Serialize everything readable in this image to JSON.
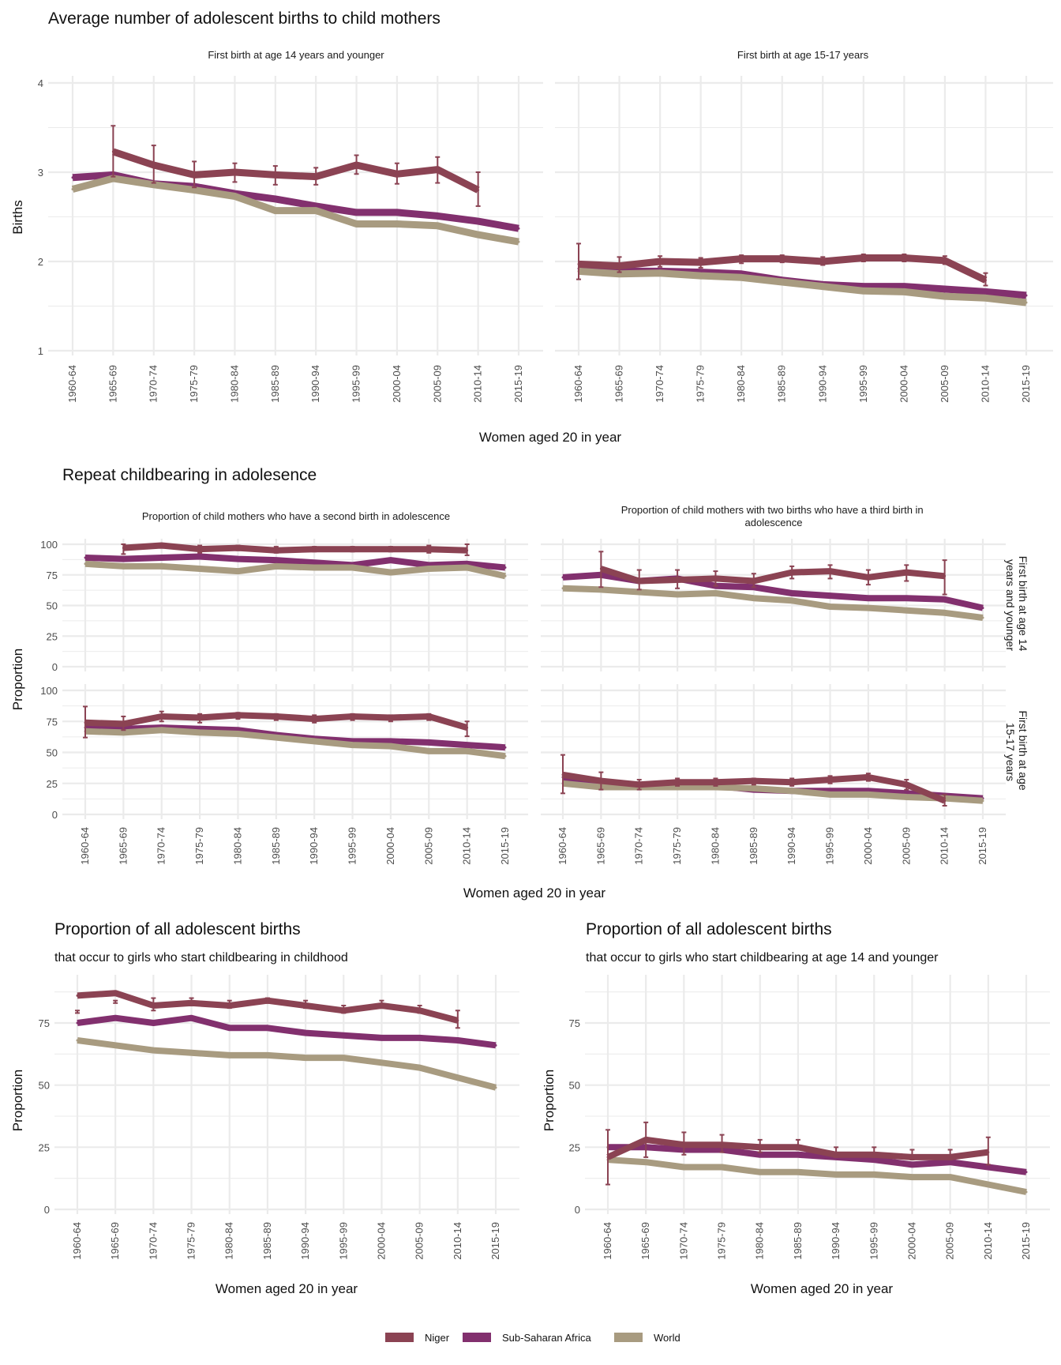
{
  "colors": {
    "Niger": "#8B4353",
    "Sub-Saharan Africa": "#82306E",
    "World": "#A89B80"
  },
  "legend": {
    "items": [
      "Niger",
      "Sub-Saharan Africa",
      "World"
    ]
  },
  "sections": {
    "top": {
      "title": "Average number of adolescent births to child mothers",
      "ylabel": "Births",
      "xlabel": "Women aged 20 in year"
    },
    "middle": {
      "title": "Repeat childbearing in adolesence",
      "ylabel": "Proportion",
      "xlabel": "Women aged 20 in year",
      "col_strips": [
        "Proportion of child mothers who have a second birth in adolescence",
        "Proportion of child mothers with two births who have a third birth in adolescence"
      ],
      "row_strips": [
        "First birth at age 14 years and younger",
        "First birth at age 15-17 years"
      ]
    },
    "bottom_left": {
      "title": "Proportion of all adolescent births",
      "subtitle": "that occur to girls who start childbearing in childhood",
      "ylabel": "Proportion",
      "xlabel": "Women aged 20 in year"
    },
    "bottom_right": {
      "title": "Proportion of all adolescent births",
      "subtitle": "that occur to girls who start childbearing at age 14 and younger",
      "ylabel": "Proportion",
      "xlabel": "Women aged 20 in year"
    }
  },
  "chart_data": [
    {
      "id": "births_14",
      "type": "line",
      "title": "First birth at age 14 years and younger",
      "xlabel": "Women aged 20 in year",
      "ylabel": "Births",
      "ylim": [
        1,
        4
      ],
      "yticks": [
        1,
        2,
        3,
        4
      ],
      "grid": true,
      "categories": [
        "1960-64",
        "1965-69",
        "1970-74",
        "1975-79",
        "1980-84",
        "1985-89",
        "1990-94",
        "1995-99",
        "2000-04",
        "2005-09",
        "2010-14",
        "2015-19"
      ],
      "series": [
        {
          "name": "Niger",
          "values": [
            null,
            3.23,
            3.08,
            2.97,
            3.0,
            2.97,
            2.95,
            3.08,
            2.98,
            3.03,
            2.8,
            null
          ],
          "error_low": [
            null,
            2.95,
            2.88,
            2.83,
            2.89,
            2.86,
            2.86,
            2.98,
            2.87,
            2.88,
            2.62,
            null
          ],
          "error_high": [
            null,
            3.52,
            3.3,
            3.12,
            3.1,
            3.07,
            3.05,
            3.19,
            3.1,
            3.17,
            3.0,
            null
          ]
        },
        {
          "name": "Sub-Saharan Africa",
          "values": [
            2.94,
            2.97,
            2.87,
            2.84,
            2.76,
            2.7,
            2.62,
            2.55,
            2.55,
            2.51,
            2.45,
            2.37
          ]
        },
        {
          "name": "World",
          "values": [
            2.81,
            2.93,
            2.86,
            2.8,
            2.73,
            2.57,
            2.57,
            2.42,
            2.42,
            2.4,
            2.3,
            2.22
          ]
        }
      ]
    },
    {
      "id": "births_15_17",
      "type": "line",
      "title": "First birth at age 15-17 years",
      "xlabel": "Women aged 20 in year",
      "ylabel": "Births",
      "ylim": [
        1,
        4
      ],
      "yticks": [
        1,
        2,
        3,
        4
      ],
      "grid": true,
      "categories": [
        "1960-64",
        "1965-69",
        "1970-74",
        "1975-79",
        "1980-84",
        "1985-89",
        "1990-94",
        "1995-99",
        "2000-04",
        "2005-09",
        "2010-14",
        "2015-19"
      ],
      "series": [
        {
          "name": "Niger",
          "values": [
            1.97,
            1.95,
            2.0,
            1.99,
            2.03,
            2.03,
            2.0,
            2.04,
            2.04,
            2.01,
            1.79,
            null
          ],
          "error_low": [
            1.8,
            1.88,
            1.94,
            1.93,
            1.98,
            1.99,
            1.96,
            2.0,
            2.0,
            1.97,
            1.73,
            null
          ],
          "error_high": [
            2.2,
            2.05,
            2.06,
            2.04,
            2.07,
            2.07,
            2.05,
            2.08,
            2.08,
            2.06,
            1.87,
            null
          ]
        },
        {
          "name": "Sub-Saharan Africa",
          "values": [
            1.92,
            1.89,
            1.89,
            1.88,
            1.86,
            1.79,
            1.74,
            1.72,
            1.72,
            1.69,
            1.66,
            1.62
          ]
        },
        {
          "name": "World",
          "values": [
            1.89,
            1.86,
            1.87,
            1.84,
            1.82,
            1.77,
            1.72,
            1.67,
            1.66,
            1.61,
            1.59,
            1.54
          ]
        }
      ]
    },
    {
      "id": "second_14",
      "type": "line",
      "title": "Proportion of child mothers who have a second birth in adolescence",
      "row": "First birth at age 14 years and younger",
      "ylabel": "Proportion",
      "ylim": [
        0,
        100
      ],
      "yticks": [
        0,
        25,
        50,
        75,
        100
      ],
      "grid": true,
      "categories": [
        "1960-64",
        "1965-69",
        "1970-74",
        "1975-79",
        "1980-84",
        "1985-89",
        "1990-94",
        "1995-99",
        "2000-04",
        "2005-09",
        "2010-14",
        "2015-19"
      ],
      "series": [
        {
          "name": "Niger",
          "values": [
            null,
            97,
            99,
            96,
            97,
            95,
            96,
            96,
            96,
            96,
            95,
            null
          ],
          "error_low": [
            null,
            92,
            97,
            93,
            95,
            93,
            94,
            94,
            94,
            93,
            91,
            null
          ],
          "error_high": [
            null,
            100,
            100,
            99,
            99,
            98,
            98,
            98,
            98,
            99,
            100,
            null
          ]
        },
        {
          "name": "Sub-Saharan Africa",
          "values": [
            89,
            88,
            89,
            90,
            88,
            87,
            85,
            83,
            87,
            83,
            84,
            81
          ]
        },
        {
          "name": "World",
          "values": [
            84,
            82,
            82,
            80,
            78,
            82,
            81,
            81,
            77,
            80,
            81,
            74
          ]
        }
      ]
    },
    {
      "id": "third_14",
      "type": "line",
      "title": "Proportion of child mothers with two births who have a third birth in adolescence",
      "row": "First birth at age 14 years and younger",
      "ylabel": "Proportion",
      "ylim": [
        0,
        100
      ],
      "yticks": [
        0,
        25,
        50,
        75,
        100
      ],
      "grid": true,
      "categories": [
        "1960-64",
        "1965-69",
        "1970-74",
        "1975-79",
        "1980-84",
        "1985-89",
        "1990-94",
        "1995-99",
        "2000-04",
        "2005-09",
        "2010-14",
        "2015-19"
      ],
      "series": [
        {
          "name": "Niger",
          "values": [
            null,
            80,
            70,
            71,
            72,
            70,
            77,
            78,
            73,
            77,
            74,
            null
          ],
          "error_low": [
            null,
            65,
            63,
            64,
            66,
            65,
            72,
            72,
            67,
            70,
            59,
            null
          ],
          "error_high": [
            null,
            94,
            79,
            79,
            78,
            76,
            82,
            83,
            79,
            83,
            87,
            null
          ]
        },
        {
          "name": "Sub-Saharan Africa",
          "values": [
            73,
            75,
            70,
            72,
            66,
            65,
            60,
            58,
            56,
            56,
            55,
            48
          ]
        },
        {
          "name": "World",
          "values": [
            64,
            63,
            61,
            59,
            60,
            56,
            54,
            49,
            48,
            46,
            44,
            40
          ]
        }
      ]
    },
    {
      "id": "second_15_17",
      "type": "line",
      "title": "Proportion of child mothers who have a second birth in adolescence",
      "row": "First birth at age 15-17 years",
      "ylabel": "Proportion",
      "ylim": [
        0,
        100
      ],
      "yticks": [
        0,
        25,
        50,
        75,
        100
      ],
      "grid": true,
      "categories": [
        "1960-64",
        "1965-69",
        "1970-74",
        "1975-79",
        "1980-84",
        "1985-89",
        "1990-94",
        "1995-99",
        "2000-04",
        "2005-09",
        "2010-14",
        "2015-19"
      ],
      "series": [
        {
          "name": "Niger",
          "values": [
            74,
            73,
            79,
            78,
            80,
            79,
            77,
            79,
            78,
            79,
            70,
            null
          ],
          "error_low": [
            62,
            68,
            75,
            74,
            77,
            76,
            74,
            76,
            75,
            76,
            63,
            null
          ],
          "error_high": [
            87,
            79,
            83,
            81,
            82,
            81,
            80,
            81,
            80,
            81,
            75,
            null
          ]
        },
        {
          "name": "Sub-Saharan Africa",
          "values": [
            70,
            69,
            70,
            69,
            68,
            64,
            61,
            59,
            59,
            58,
            56,
            54
          ]
        },
        {
          "name": "World",
          "values": [
            67,
            66,
            68,
            66,
            65,
            62,
            59,
            56,
            55,
            51,
            51,
            47
          ]
        }
      ]
    },
    {
      "id": "third_15_17",
      "type": "line",
      "title": "Proportion of child mothers with two births who have a third birth in adolescence",
      "row": "First birth at age 15-17 years",
      "ylabel": "Proportion",
      "ylim": [
        0,
        100
      ],
      "yticks": [
        0,
        25,
        50,
        75,
        100
      ],
      "grid": true,
      "categories": [
        "1960-64",
        "1965-69",
        "1970-74",
        "1975-79",
        "1980-84",
        "1985-89",
        "1990-94",
        "1995-99",
        "2000-04",
        "2005-09",
        "2010-14",
        "2015-19"
      ],
      "series": [
        {
          "name": "Niger",
          "values": [
            32,
            27,
            24,
            26,
            26,
            27,
            26,
            28,
            30,
            24,
            11,
            null
          ],
          "error_low": [
            17,
            20,
            20,
            23,
            23,
            24,
            23,
            25,
            27,
            20,
            7,
            null
          ],
          "error_high": [
            48,
            34,
            28,
            29,
            29,
            29,
            29,
            31,
            33,
            28,
            16,
            null
          ]
        },
        {
          "name": "Sub-Saharan Africa",
          "values": [
            30,
            25,
            24,
            23,
            23,
            20,
            19,
            19,
            19,
            17,
            15,
            13
          ]
        },
        {
          "name": "World",
          "values": [
            25,
            22,
            22,
            22,
            22,
            21,
            19,
            16,
            16,
            14,
            13,
            11
          ]
        }
      ]
    },
    {
      "id": "childhood_share",
      "type": "line",
      "title": "Proportion of all adolescent births",
      "subtitle": "that occur to girls who start childbearing in childhood",
      "xlabel": "Women aged 20 in year",
      "ylabel": "Proportion",
      "ylim": [
        0,
        93
      ],
      "yticks": [
        0,
        25,
        50,
        75
      ],
      "grid": true,
      "categories": [
        "1960-64",
        "1965-69",
        "1970-74",
        "1975-79",
        "1980-84",
        "1985-89",
        "1990-94",
        "1995-99",
        "2000-04",
        "2005-09",
        "2010-14",
        "2015-19"
      ],
      "series": [
        {
          "name": "Niger",
          "values": [
            86,
            87,
            82,
            83,
            82,
            84,
            82,
            80,
            82,
            80,
            76,
            null
          ],
          "error_low": [
            79,
            83,
            80,
            82,
            81,
            83,
            81,
            79,
            81,
            79,
            73,
            null
          ],
          "error_high": [
            80,
            84,
            85,
            85,
            84,
            85,
            84,
            82,
            84,
            82,
            80,
            null
          ]
        },
        {
          "name": "Sub-Saharan Africa",
          "values": [
            75,
            77,
            75,
            77,
            73,
            73,
            71,
            70,
            69,
            69,
            68,
            66
          ]
        },
        {
          "name": "World",
          "values": [
            68,
            66,
            64,
            63,
            62,
            62,
            61,
            61,
            59,
            57,
            53,
            49
          ]
        }
      ]
    },
    {
      "id": "age14_share",
      "type": "line",
      "title": "Proportion of all adolescent births",
      "subtitle": "that occur to girls who start childbearing at age 14 and younger",
      "xlabel": "Women aged 20 in year",
      "ylabel": "Proportion",
      "ylim": [
        0,
        93
      ],
      "yticks": [
        0,
        25,
        50,
        75
      ],
      "grid": true,
      "categories": [
        "1960-64",
        "1965-69",
        "1970-74",
        "1975-79",
        "1980-84",
        "1985-89",
        "1990-94",
        "1995-99",
        "2000-04",
        "2005-09",
        "2010-14",
        "2015-19"
      ],
      "series": [
        {
          "name": "Niger",
          "values": [
            21,
            28,
            26,
            26,
            25,
            25,
            22,
            22,
            21,
            21,
            23,
            null
          ],
          "error_low": [
            10,
            21,
            22,
            23,
            23,
            24,
            21,
            21,
            20,
            20,
            18,
            null
          ],
          "error_high": [
            32,
            35,
            31,
            30,
            28,
            28,
            25,
            25,
            24,
            24,
            29,
            null
          ]
        },
        {
          "name": "Sub-Saharan Africa",
          "values": [
            25,
            25,
            24,
            24,
            22,
            22,
            21,
            20,
            18,
            19,
            17,
            15
          ]
        },
        {
          "name": "World",
          "values": [
            20,
            19,
            17,
            17,
            15,
            15,
            14,
            14,
            13,
            13,
            10,
            7
          ]
        }
      ]
    }
  ]
}
